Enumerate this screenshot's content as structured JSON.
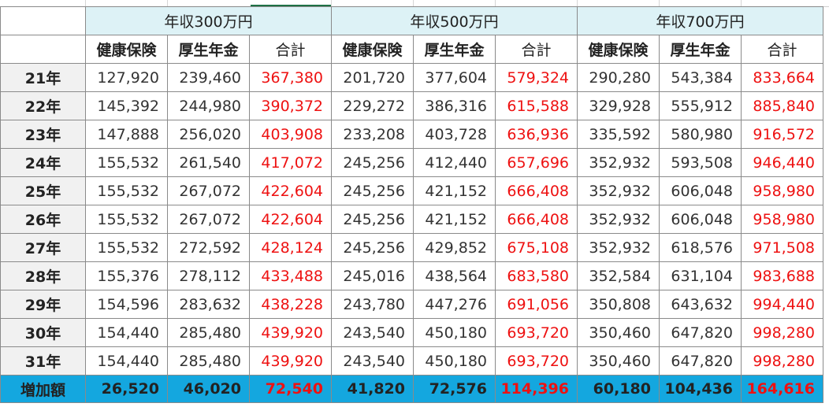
{
  "groups": [
    "年収300万円",
    "年収500万円",
    "年収700万円"
  ],
  "columns": [
    "健康保険",
    "厚生年金",
    "合計"
  ],
  "rows": [
    {
      "label": "21年",
      "values": [
        "127,920",
        "239,460",
        "367,380",
        "201,720",
        "377,604",
        "579,324",
        "290,280",
        "543,384",
        "833,664"
      ]
    },
    {
      "label": "22年",
      "values": [
        "145,392",
        "244,980",
        "390,372",
        "229,272",
        "386,316",
        "615,588",
        "329,928",
        "555,912",
        "885,840"
      ]
    },
    {
      "label": "23年",
      "values": [
        "147,888",
        "256,020",
        "403,908",
        "233,208",
        "403,728",
        "636,936",
        "335,592",
        "580,980",
        "916,572"
      ]
    },
    {
      "label": "24年",
      "values": [
        "155,532",
        "261,540",
        "417,072",
        "245,256",
        "412,440",
        "657,696",
        "352,932",
        "593,508",
        "946,440"
      ]
    },
    {
      "label": "25年",
      "values": [
        "155,532",
        "267,072",
        "422,604",
        "245,256",
        "421,152",
        "666,408",
        "352,932",
        "606,048",
        "958,980"
      ]
    },
    {
      "label": "26年",
      "values": [
        "155,532",
        "267,072",
        "422,604",
        "245,256",
        "421,152",
        "666,408",
        "352,932",
        "606,048",
        "958,980"
      ]
    },
    {
      "label": "27年",
      "values": [
        "155,532",
        "272,592",
        "428,124",
        "245,256",
        "429,852",
        "675,108",
        "352,932",
        "618,576",
        "971,508"
      ]
    },
    {
      "label": "28年",
      "values": [
        "155,376",
        "278,112",
        "433,488",
        "245,016",
        "438,564",
        "683,580",
        "352,584",
        "631,104",
        "983,688"
      ]
    },
    {
      "label": "29年",
      "values": [
        "154,596",
        "283,632",
        "438,228",
        "243,780",
        "447,276",
        "691,056",
        "350,808",
        "643,632",
        "994,440"
      ]
    },
    {
      "label": "30年",
      "values": [
        "154,440",
        "285,480",
        "439,920",
        "243,540",
        "450,180",
        "693,720",
        "350,460",
        "647,820",
        "998,280"
      ]
    },
    {
      "label": "31年",
      "values": [
        "154,440",
        "285,480",
        "439,920",
        "243,540",
        "450,180",
        "693,720",
        "350,460",
        "647,820",
        "998,280"
      ]
    }
  ],
  "total": {
    "label": "増加額",
    "values": [
      "26,520",
      "46,020",
      "72,540",
      "41,820",
      "72,576",
      "114,396",
      "60,180",
      "104,436",
      "164,616"
    ]
  },
  "colors": {
    "group_header": "#ddf2f6",
    "total_row": "#14a7df",
    "sum_text": "#ee1111",
    "row_header": "#f1f1f1"
  }
}
